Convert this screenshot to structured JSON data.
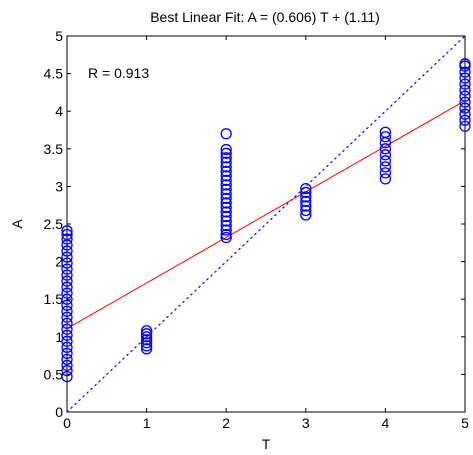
{
  "chart_data": {
    "type": "scatter",
    "title": "Best Linear Fit:  A = (0.606) T + (1.11)",
    "xlabel": "T",
    "ylabel": "A",
    "xlim": [
      0,
      5
    ],
    "ylim": [
      0,
      5
    ],
    "x_ticks": [
      "0",
      "1",
      "2",
      "3",
      "4",
      "5"
    ],
    "y_ticks": [
      "0",
      "0.5",
      "1",
      "1.5",
      "2",
      "2.5",
      "3",
      "3.5",
      "4",
      "4.5",
      "5"
    ],
    "annotation": "R = 0.913",
    "fit_line": {
      "slope": 0.606,
      "intercept": 1.11,
      "color": "#ff0000"
    },
    "identity_line": {
      "slope": 1,
      "intercept": 0,
      "style": "dotted",
      "color": "#0000ff"
    },
    "marker_color": "#0000ff",
    "series": [
      {
        "x": 0,
        "values": [
          0.47,
          0.55,
          0.62,
          0.7,
          0.78,
          0.86,
          0.94,
          1.02,
          1.1,
          1.18,
          1.26,
          1.34,
          1.42,
          1.5,
          1.58,
          1.66,
          1.74,
          1.82,
          1.9,
          1.98,
          2.06,
          2.14,
          2.22,
          2.3,
          2.36,
          2.41
        ]
      },
      {
        "x": 1,
        "values": [
          0.84,
          0.88,
          0.92,
          0.96,
          1.0,
          1.04,
          1.08
        ]
      },
      {
        "x": 2,
        "values": [
          2.32,
          2.36,
          2.42,
          2.48,
          2.54,
          2.6,
          2.66,
          2.72,
          2.78,
          2.84,
          2.9,
          2.96,
          3.02,
          3.08,
          3.14,
          3.2,
          3.26,
          3.32,
          3.38,
          3.44,
          3.49,
          3.7
        ]
      },
      {
        "x": 3,
        "values": [
          2.62,
          2.68,
          2.74,
          2.8,
          2.86,
          2.92,
          2.97
        ]
      },
      {
        "x": 4,
        "values": [
          3.1,
          3.18,
          3.26,
          3.34,
          3.42,
          3.5,
          3.58,
          3.66,
          3.72
        ]
      },
      {
        "x": 5,
        "values": [
          3.8,
          3.88,
          3.96,
          4.04,
          4.12,
          4.2,
          4.28,
          4.36,
          4.44,
          4.52,
          4.6,
          4.63
        ]
      }
    ]
  }
}
